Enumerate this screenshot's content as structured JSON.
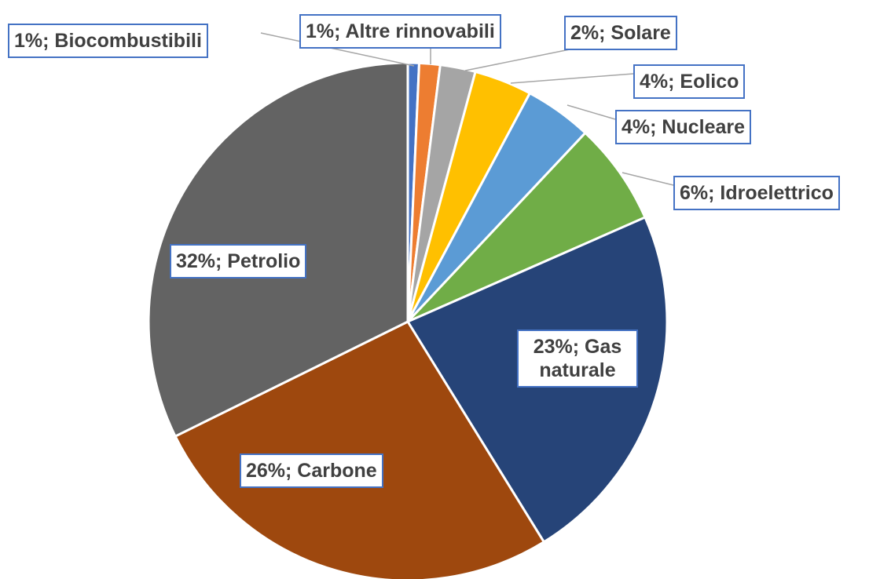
{
  "chart_data": {
    "type": "pie",
    "categories": [
      "Biocombustibili",
      "Altre rinnovabili",
      "Solare",
      "Eolico",
      "Nucleare",
      "Idroelettrico",
      "Gas naturale",
      "Carbone",
      "Petrolio"
    ],
    "values": [
      0.7,
      1.3,
      2.2,
      3.6,
      4.2,
      6.4,
      22.8,
      26.5,
      32.3
    ],
    "value_labels": [
      "1%; Biocombustibili",
      "1%; Altre rinnovabili",
      "2%; Solare",
      "4%; Eolico",
      "4%; Nucleare",
      "6%; Idroelettrico",
      "23%; Gas naturale",
      "26%; Carbone",
      "32%; Petrolio"
    ],
    "colors": [
      "#4472c4",
      "#ed7d31",
      "#a5a5a5",
      "#ffc000",
      "#5b9bd5",
      "#70ad47",
      "#264478",
      "#9e480e",
      "#636363"
    ]
  }
}
